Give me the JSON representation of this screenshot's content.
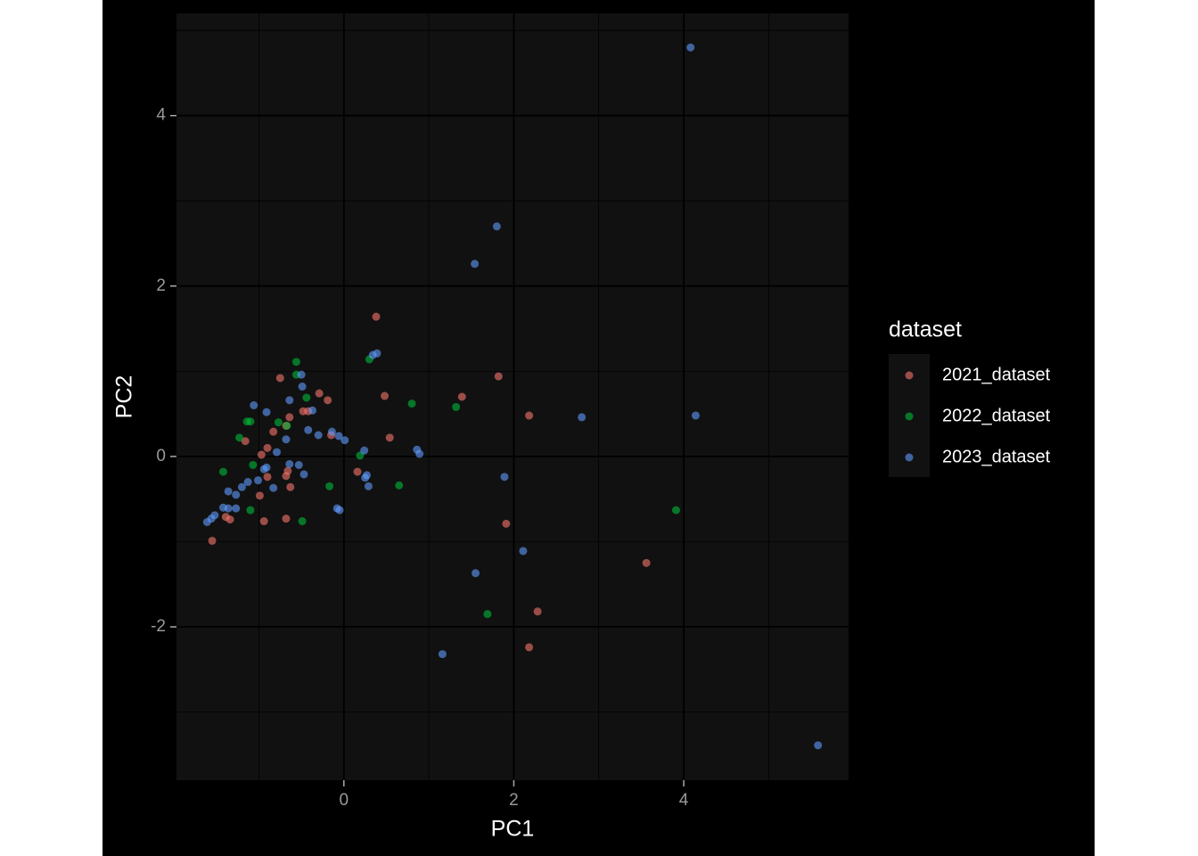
{
  "chart_data": {
    "type": "scatter",
    "x_label": "PC1",
    "y_label": "PC2",
    "legend_title": "dataset",
    "legend_position": "right",
    "xlim": [
      -1.97,
      5.94
    ],
    "ylim": [
      -3.8,
      5.2
    ],
    "xticks": [
      0,
      2,
      4
    ],
    "yticks": [
      -2,
      0,
      2,
      4
    ],
    "x_minor_ticks": [
      -1,
      1,
      3,
      5
    ],
    "y_minor_ticks": [
      -3,
      -1,
      1,
      3,
      5
    ],
    "grid": true,
    "series": [
      {
        "name": "2021_dataset",
        "color": "#F8766D",
        "x": [
          0.38,
          -0.75,
          -0.29,
          -0.19,
          0.48,
          1.39,
          1.82,
          2.18,
          0.54,
          -0.42,
          -0.48,
          -0.64,
          -0.83,
          -0.68,
          -0.15,
          -0.9,
          -0.97,
          -1.16,
          0.16,
          -0.68,
          -0.66,
          -0.9,
          -0.63,
          -0.99,
          -1.34,
          -0.68,
          -0.94,
          -1.39,
          -1.55,
          1.91,
          3.56,
          2.28,
          2.18
        ],
        "y": [
          1.64,
          0.92,
          0.74,
          0.66,
          0.71,
          0.7,
          0.94,
          0.48,
          0.22,
          0.53,
          0.53,
          0.46,
          0.29,
          0.36,
          0.25,
          0.1,
          0.02,
          0.18,
          -0.18,
          -0.23,
          -0.17,
          -0.24,
          -0.36,
          -0.46,
          -0.74,
          -0.73,
          -0.76,
          -0.71,
          -0.99,
          -0.79,
          -1.25,
          -1.82,
          -2.24
        ]
      },
      {
        "name": "2022_dataset",
        "color": "#00BA38",
        "x": [
          -0.56,
          -0.56,
          0.3,
          -0.44,
          0.8,
          1.32,
          -0.77,
          -0.67,
          -1.1,
          -1.14,
          -1.23,
          0.19,
          -1.07,
          -1.42,
          -0.17,
          0.65,
          -1.1,
          -0.49,
          3.91,
          1.69
        ],
        "y": [
          1.11,
          0.96,
          1.14,
          0.69,
          0.62,
          0.58,
          0.4,
          0.36,
          0.41,
          0.41,
          0.22,
          0.01,
          -0.1,
          -0.18,
          -0.35,
          -0.34,
          -0.63,
          -0.76,
          -0.63,
          -1.85
        ]
      },
      {
        "name": "2023_dataset",
        "color": "#619CFF",
        "x": [
          4.08,
          1.8,
          1.54,
          0.39,
          0.34,
          -0.5,
          -0.49,
          -1.06,
          -0.64,
          -0.37,
          2.8,
          4.14,
          -0.91,
          -0.42,
          -0.14,
          -0.3,
          -0.06,
          0.01,
          -0.68,
          -0.79,
          0.24,
          0.86,
          0.89,
          0.27,
          0.25,
          0.29,
          1.89,
          -0.64,
          -0.53,
          -0.47,
          -0.91,
          -0.94,
          -1.01,
          -1.13,
          -1.2,
          -0.83,
          -1.27,
          -1.36,
          -1.42,
          -1.27,
          -1.36,
          -0.08,
          -0.05,
          -1.52,
          -1.56,
          -1.61,
          2.11,
          1.55,
          1.16,
          5.58
        ],
        "y": [
          4.8,
          2.7,
          2.26,
          1.21,
          1.19,
          0.96,
          0.82,
          0.6,
          0.66,
          0.54,
          0.46,
          0.48,
          0.52,
          0.31,
          0.29,
          0.25,
          0.24,
          0.19,
          0.2,
          0.05,
          0.07,
          0.08,
          0.03,
          -0.22,
          -0.25,
          -0.35,
          -0.24,
          -0.09,
          -0.1,
          -0.21,
          -0.13,
          -0.15,
          -0.28,
          -0.3,
          -0.36,
          -0.37,
          -0.45,
          -0.41,
          -0.6,
          -0.61,
          -0.61,
          -0.61,
          -0.63,
          -0.69,
          -0.73,
          -0.77,
          -1.11,
          -1.37,
          -2.32,
          -3.39
        ]
      }
    ]
  }
}
